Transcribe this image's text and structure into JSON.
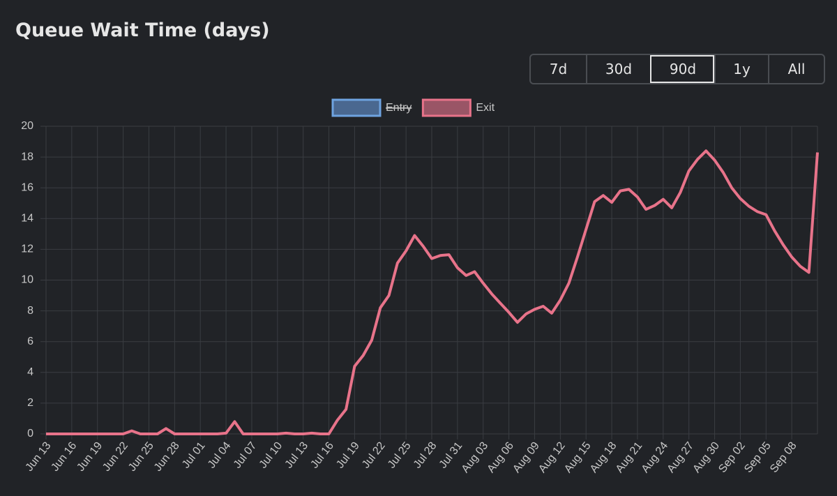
{
  "chart_data": {
    "type": "line",
    "title": "Queue Wait Time (days)",
    "range_buttons": [
      "7d",
      "30d",
      "90d",
      "1y",
      "All"
    ],
    "active_range": "90d",
    "categories": [
      "Jun 13",
      null,
      null,
      "Jun 16",
      null,
      null,
      "Jun 19",
      null,
      null,
      "Jun 22",
      null,
      null,
      "Jun 25",
      null,
      null,
      "Jun 28",
      null,
      null,
      "Jul 01",
      null,
      null,
      "Jul 04",
      null,
      null,
      "Jul 07",
      null,
      null,
      "Jul 10",
      null,
      null,
      "Jul 13",
      null,
      null,
      "Jul 16",
      null,
      null,
      "Jul 19",
      null,
      null,
      "Jul 22",
      null,
      null,
      "Jul 25",
      null,
      null,
      "Jul 28",
      null,
      null,
      "Jul 31",
      null,
      null,
      "Aug 03",
      null,
      null,
      "Aug 06",
      null,
      null,
      "Aug 09",
      null,
      null,
      "Aug 12",
      null,
      null,
      "Aug 15",
      null,
      null,
      "Aug 18",
      null,
      null,
      "Aug 21",
      null,
      null,
      "Aug 24",
      null,
      null,
      "Aug 27",
      null,
      null,
      "Aug 30",
      null,
      null,
      "Sep 02",
      null,
      null,
      "Sep 05",
      null,
      null,
      "Sep 08",
      null,
      null,
      null
    ],
    "series": [
      {
        "name": "Entry",
        "color": "#6ea3e0",
        "fill": "#4a6890",
        "hidden": true
      },
      {
        "name": "Exit",
        "color": "#e8738a",
        "fill": "#9a5566",
        "values": [
          0,
          0,
          0,
          0,
          0,
          0,
          0,
          0,
          0,
          0,
          0.2,
          0,
          0,
          0,
          0.35,
          0,
          0,
          0,
          0,
          0,
          0,
          0.05,
          0.8,
          0,
          0,
          0,
          0,
          0,
          0.05,
          0,
          0,
          0.05,
          0,
          0,
          0.9,
          1.6,
          4.4,
          5.1,
          6.1,
          8.2,
          9.0,
          11.1,
          11.9,
          12.9,
          12.2,
          11.4,
          11.6,
          11.65,
          10.8,
          10.3,
          10.55,
          9.8,
          9.1,
          8.5,
          7.9,
          7.25,
          7.8,
          8.1,
          8.3,
          7.85,
          8.7,
          9.8,
          11.5,
          13.3,
          15.1,
          15.5,
          15.05,
          15.8,
          15.9,
          15.4,
          14.6,
          14.85,
          15.25,
          14.7,
          15.7,
          17.1,
          17.85,
          18.4,
          17.8,
          17.0,
          16.0,
          15.3,
          14.8,
          14.45,
          14.25,
          13.2,
          12.3,
          11.5,
          10.9,
          10.5,
          18.3
        ]
      }
    ],
    "ylim": [
      0,
      20
    ],
    "yticks": [
      0,
      2,
      4,
      6,
      8,
      10,
      12,
      14,
      16,
      18,
      20
    ],
    "grid": true,
    "legend": "top"
  }
}
